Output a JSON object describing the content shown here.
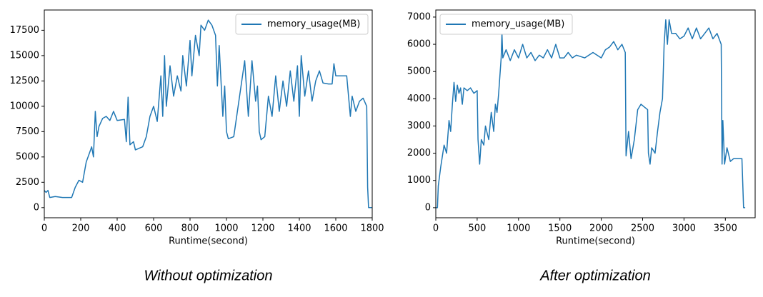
{
  "chart_data": [
    {
      "type": "line",
      "caption": "Without optimization",
      "xlabel": "Runtime(second)",
      "legend": "upper right",
      "xlim": [
        0,
        1800
      ],
      "ylim": [
        -1000,
        19500
      ],
      "xticks": [
        0,
        200,
        400,
        600,
        800,
        1000,
        1200,
        1400,
        1600,
        1800
      ],
      "yticks": [
        0,
        2500,
        5000,
        7500,
        10000,
        12500,
        15000,
        17500
      ],
      "x": [
        0,
        10,
        20,
        30,
        60,
        100,
        150,
        170,
        190,
        210,
        230,
        250,
        260,
        270,
        280,
        290,
        300,
        320,
        340,
        360,
        380,
        400,
        440,
        450,
        460,
        470,
        490,
        500,
        540,
        560,
        580,
        600,
        620,
        640,
        650,
        660,
        670,
        690,
        710,
        730,
        750,
        760,
        780,
        800,
        810,
        830,
        850,
        860,
        880,
        900,
        920,
        940,
        950,
        960,
        980,
        990,
        1000,
        1010,
        1040,
        1060,
        1080,
        1100,
        1120,
        1140,
        1160,
        1170,
        1180,
        1190,
        1210,
        1230,
        1250,
        1270,
        1290,
        1310,
        1330,
        1350,
        1370,
        1390,
        1400,
        1410,
        1430,
        1450,
        1470,
        1490,
        1510,
        1530,
        1560,
        1580,
        1590,
        1600,
        1660,
        1680,
        1690,
        1710,
        1730,
        1750,
        1770,
        1775,
        1780,
        1800
      ],
      "series": [
        {
          "name": "memory_usage(MB)",
          "color": "#1f77b4",
          "values": [
            1700,
            1500,
            1700,
            1000,
            1100,
            1000,
            1000,
            2000,
            2700,
            2500,
            4500,
            5500,
            6000,
            5000,
            9500,
            7000,
            8000,
            8800,
            9000,
            8600,
            9500,
            8600,
            8700,
            6500,
            10900,
            6200,
            6500,
            5700,
            6000,
            7000,
            9000,
            10000,
            8500,
            13000,
            9000,
            15000,
            10000,
            14000,
            11000,
            13000,
            11500,
            15000,
            12000,
            16500,
            13000,
            17000,
            15000,
            18000,
            17500,
            18500,
            18000,
            17000,
            12000,
            16000,
            9000,
            12000,
            7500,
            6800,
            7000,
            9500,
            12000,
            14500,
            9000,
            14500,
            10500,
            12000,
            7500,
            6700,
            7000,
            11000,
            9000,
            13000,
            9500,
            12500,
            10000,
            13500,
            10500,
            14000,
            9000,
            15000,
            11000,
            13500,
            10500,
            12500,
            13500,
            12300,
            12200,
            12200,
            14200,
            13000,
            13000,
            9000,
            11000,
            9500,
            10500,
            10800,
            10000,
            2000,
            0,
            0
          ]
        }
      ]
    },
    {
      "type": "line",
      "caption": "After optimization",
      "xlabel": "Runtime(second)",
      "legend": "upper left",
      "xlim": [
        0,
        3860
      ],
      "ylim": [
        -370,
        7260
      ],
      "xticks": [
        0,
        500,
        1000,
        1500,
        2000,
        2500,
        3000,
        3500
      ],
      "yticks": [
        0,
        1000,
        2000,
        3000,
        4000,
        5000,
        6000,
        7000
      ],
      "x": [
        0,
        20,
        30,
        60,
        100,
        130,
        160,
        180,
        200,
        220,
        240,
        260,
        280,
        300,
        320,
        340,
        380,
        420,
        460,
        500,
        510,
        530,
        550,
        580,
        600,
        640,
        670,
        700,
        720,
        740,
        760,
        790,
        800,
        810,
        850,
        900,
        950,
        1000,
        1050,
        1100,
        1150,
        1200,
        1250,
        1300,
        1350,
        1400,
        1450,
        1500,
        1550,
        1600,
        1650,
        1700,
        1800,
        1900,
        2000,
        2050,
        2100,
        2150,
        2200,
        2250,
        2290,
        2300,
        2330,
        2360,
        2400,
        2440,
        2480,
        2520,
        2560,
        2570,
        2590,
        2610,
        2650,
        2680,
        2710,
        2740,
        2760,
        2780,
        2800,
        2820,
        2850,
        2900,
        2950,
        3000,
        3050,
        3100,
        3150,
        3200,
        3300,
        3350,
        3400,
        3450,
        3460,
        3470,
        3490,
        3520,
        3560,
        3600,
        3660,
        3700,
        3720,
        3740
      ],
      "series": [
        {
          "name": "memory_usage(MB)",
          "color": "#1f77b4",
          "values": [
            0,
            0,
            800,
            1500,
            2300,
            2000,
            3200,
            2800,
            3800,
            4600,
            3900,
            4500,
            4200,
            4400,
            3800,
            4400,
            4300,
            4400,
            4200,
            4300,
            2500,
            1600,
            2500,
            2300,
            3000,
            2500,
            3500,
            2800,
            3800,
            3500,
            4200,
            5500,
            6400,
            5500,
            5800,
            5400,
            5800,
            5500,
            6000,
            5500,
            5700,
            5400,
            5600,
            5500,
            5800,
            5500,
            6000,
            5500,
            5500,
            5700,
            5500,
            5600,
            5500,
            5700,
            5500,
            5800,
            5900,
            6100,
            5800,
            6000,
            5700,
            1900,
            2800,
            1800,
            2500,
            3600,
            3800,
            3700,
            3600,
            2000,
            1600,
            2200,
            2000,
            2800,
            3500,
            4000,
            6000,
            6900,
            6000,
            6900,
            6400,
            6400,
            6200,
            6300,
            6600,
            6200,
            6600,
            6200,
            6600,
            6200,
            6400,
            6000,
            1600,
            3200,
            1600,
            2200,
            1700,
            1800,
            1800,
            1800,
            0,
            0
          ]
        }
      ]
    }
  ]
}
